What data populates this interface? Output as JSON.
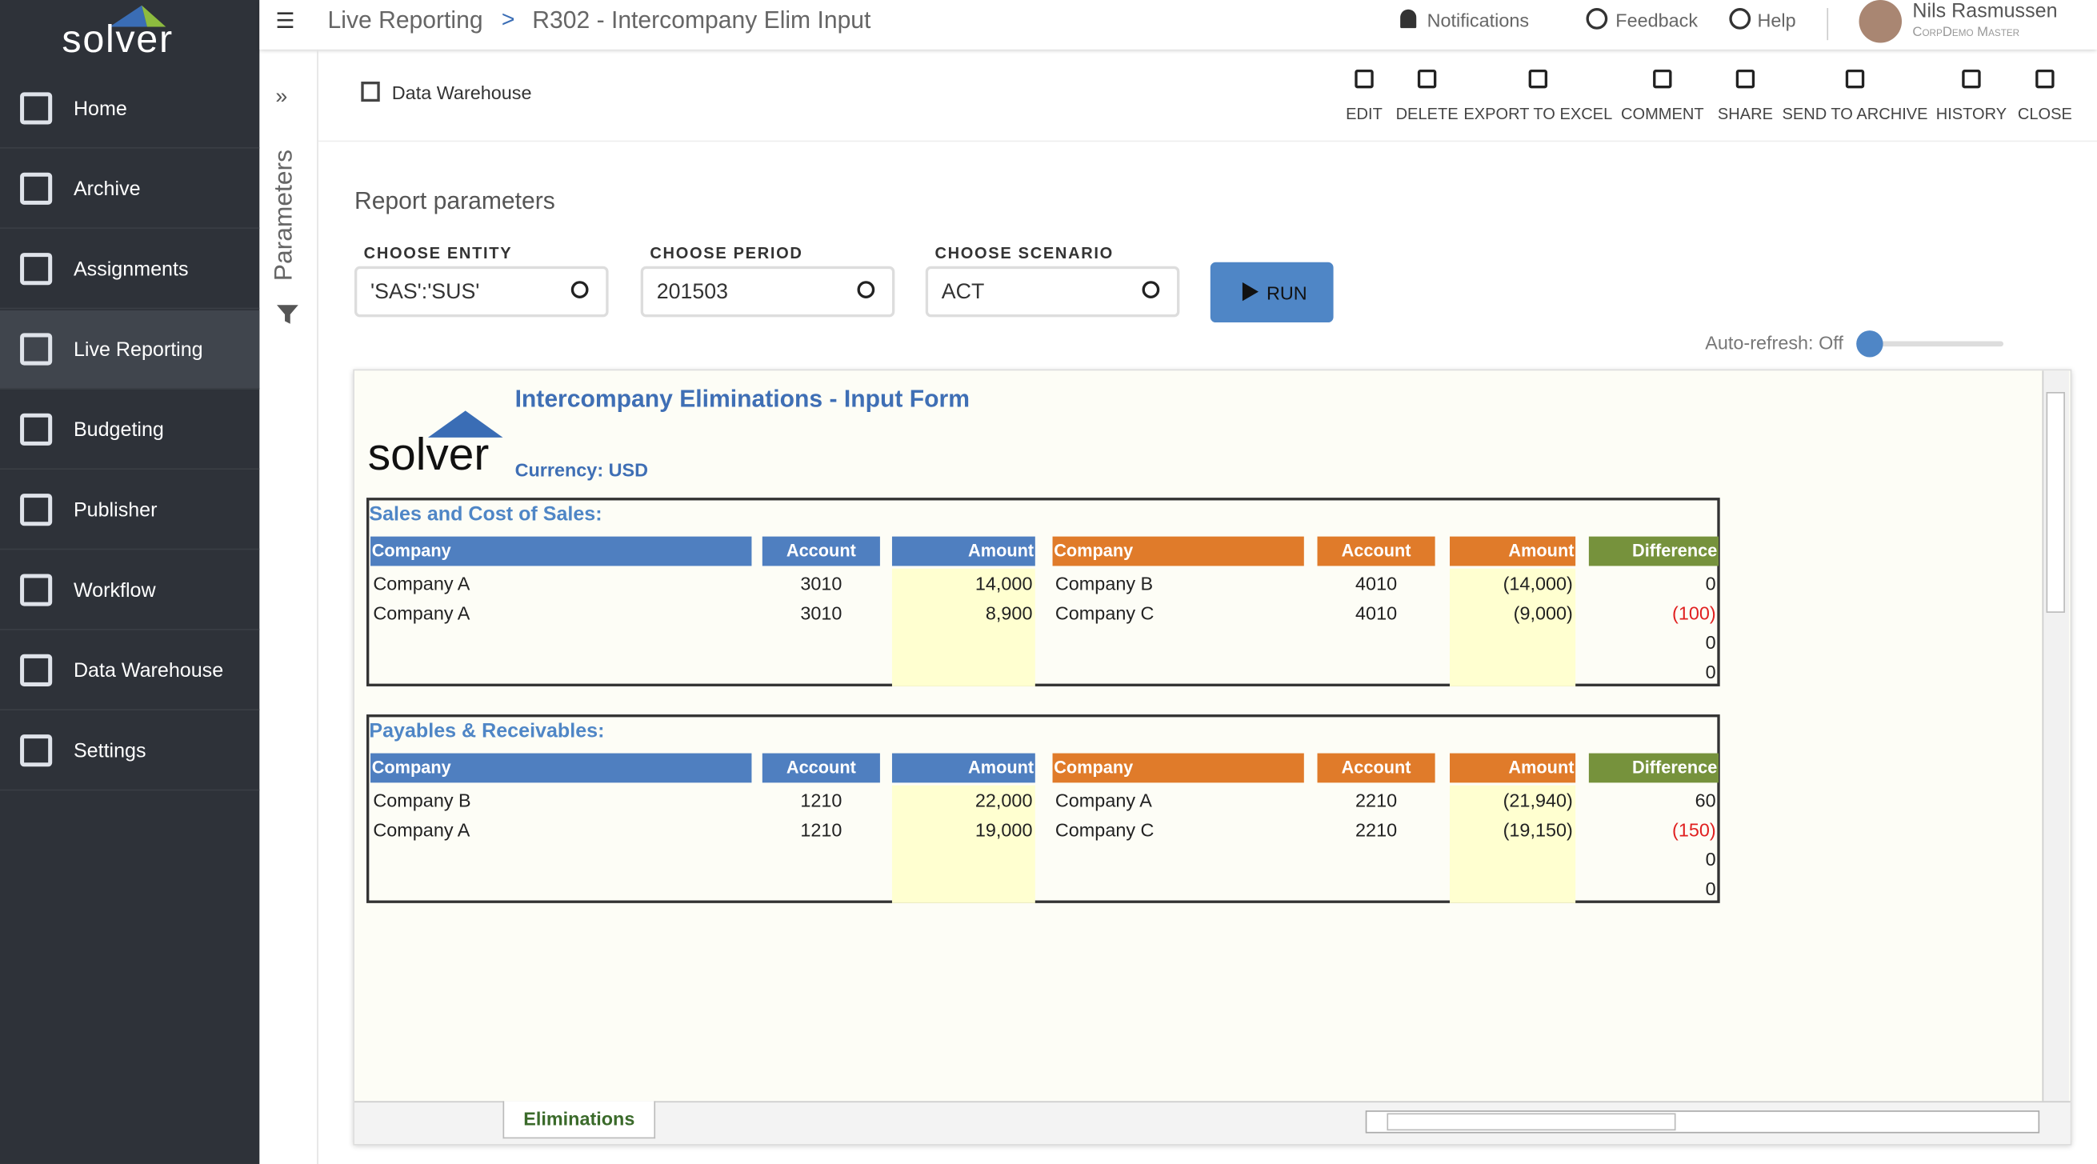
{
  "sidebar": {
    "logo": "solver",
    "items": [
      "Home",
      "Archive",
      "Assignments",
      "Live Reporting",
      "Budgeting",
      "Publisher",
      "Workflow",
      "Data Warehouse",
      "Settings"
    ],
    "active_index": 3
  },
  "header": {
    "breadcrumb": [
      "Live Reporting",
      "R302 - Intercompany Elim Input"
    ],
    "separator": ">",
    "notifications": "Notifications",
    "feedback": "Feedback",
    "help": "Help",
    "user": {
      "name": "Nils Rasmussen",
      "role": "CorpDemo Master"
    }
  },
  "parameters_tab": "Parameters",
  "toolbar": {
    "source": "Data Warehouse",
    "actions": [
      "EDIT",
      "DELETE",
      "EXPORT TO EXCEL",
      "COMMENT",
      "SHARE",
      "SEND TO ARCHIVE",
      "HISTORY",
      "CLOSE"
    ]
  },
  "report_parameters": {
    "title": "Report parameters",
    "fields": [
      {
        "label": "CHOOSE ENTITY",
        "value": "'SAS':'SUS'"
      },
      {
        "label": "CHOOSE PERIOD",
        "value": "201503"
      },
      {
        "label": "CHOOSE SCENARIO",
        "value": "ACT"
      }
    ],
    "run": "RUN",
    "auto_refresh": "Auto-refresh: Off"
  },
  "report": {
    "title": "Intercompany Eliminations - Input Form",
    "logo": "solver",
    "currency": "Currency: USD",
    "sections": [
      {
        "title": "Sales and Cost of Sales:",
        "headers": [
          "Company",
          "Account",
          "Amount",
          "Company",
          "Account",
          "Amount",
          "Difference"
        ],
        "rows": [
          [
            "Company A",
            "3010",
            "14,000",
            "Company B",
            "4010",
            "(14,000)",
            "0"
          ],
          [
            "Company A",
            "3010",
            "8,900",
            "Company C",
            "4010",
            "(9,000)",
            "(100)"
          ],
          [
            null,
            null,
            null,
            null,
            null,
            null,
            "0"
          ],
          [
            null,
            null,
            null,
            null,
            null,
            null,
            "0"
          ]
        ]
      },
      {
        "title": "Payables & Receivables:",
        "headers": [
          "Company",
          "Account",
          "Amount",
          "Company",
          "Account",
          "Amount",
          "Difference"
        ],
        "rows": [
          [
            "Company B",
            "1210",
            "22,000",
            "Company A",
            "2210",
            "(21,940)",
            "60"
          ],
          [
            "Company A",
            "1210",
            "19,000",
            "Company C",
            "2210",
            "(19,150)",
            "(150)"
          ],
          [
            null,
            null,
            null,
            null,
            null,
            null,
            "0"
          ],
          [
            null,
            null,
            null,
            null,
            null,
            null,
            "0"
          ]
        ]
      }
    ],
    "sheet_tab": "Eliminations"
  }
}
